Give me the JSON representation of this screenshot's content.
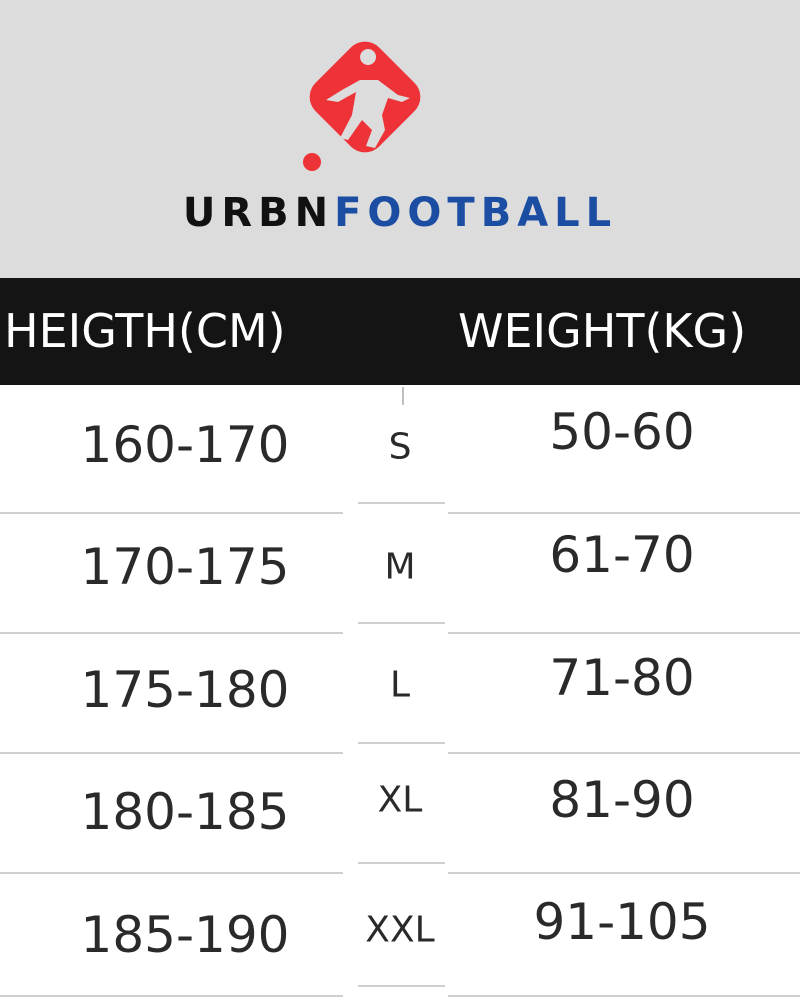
{
  "logo": {
    "brand_part1": "URBN",
    "brand_part2": "FOOTBALL",
    "colors": {
      "red": "#ee3338",
      "dark": "#111111",
      "blue": "#1b4da3"
    }
  },
  "table": {
    "headers": {
      "height": "HEIGTH(CM)",
      "weight": "WEIGHT(KG)"
    },
    "rows": [
      {
        "height": "160-170",
        "size": "S",
        "weight": "50-60"
      },
      {
        "height": "170-175",
        "size": "M",
        "weight": "61-70"
      },
      {
        "height": "175-180",
        "size": "L",
        "weight": "71-80"
      },
      {
        "height": "180-185",
        "size": "XL",
        "weight": "81-90"
      },
      {
        "height": "185-190",
        "size": "XXL",
        "weight": "91-105"
      }
    ]
  }
}
